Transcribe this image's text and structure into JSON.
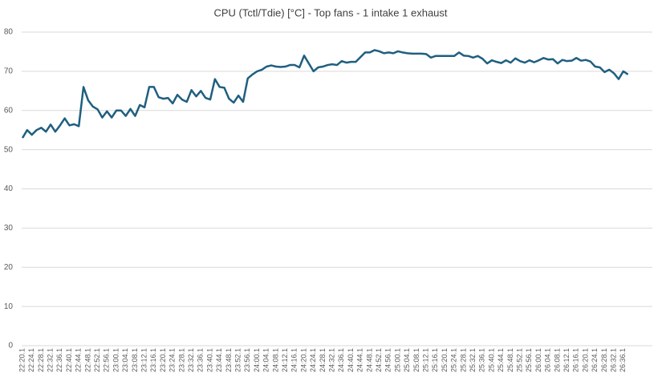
{
  "chart_data": {
    "type": "line",
    "title": "CPU (Tctl/Tdie) [°C] - Top fans - 1 intake 1 exhaust",
    "categories": [
      "22:20.1",
      null,
      "22:24.1",
      null,
      "22:28.1",
      null,
      "22:32.1",
      null,
      "22:36.1",
      null,
      "22:40.1",
      null,
      "22:44.1",
      null,
      "22:48.1",
      null,
      "22:52.1",
      null,
      "22:56.1",
      null,
      "23:00.1",
      null,
      "23:04.1",
      null,
      "23:08.1",
      null,
      "23:12.1",
      null,
      "23:16.1",
      null,
      "23:20.1",
      null,
      "23:24.1",
      null,
      "23:28.1",
      null,
      "23:32.1",
      null,
      "23:36.1",
      null,
      "23:40.1",
      null,
      "23:44.1",
      null,
      "23:48.1",
      null,
      "23:52.1",
      null,
      "23:56.1",
      null,
      "24:00.1",
      null,
      "24:04.1",
      null,
      "24:08.1",
      null,
      "24:12.1",
      null,
      "24:16.1",
      null,
      "24:20.1",
      null,
      "24:24.1",
      null,
      "24:28.1",
      null,
      "24:32.1",
      null,
      "24:36.1",
      null,
      "24:40.1",
      null,
      "24:44.1",
      null,
      "24:48.1",
      null,
      "24:52.1",
      null,
      "24:56.1",
      null,
      "25:00.1",
      null,
      "25:04.1",
      null,
      "25:08.1",
      null,
      "25:12.1",
      null,
      "25:16.1",
      null,
      "25:20.1",
      null,
      "25:24.1",
      null,
      "25:28.1",
      null,
      "25:32.1",
      null,
      "25:36.1",
      null,
      "25:40.1",
      null,
      "25:44.1",
      null,
      "25:48.1",
      null,
      "25:52.1",
      null,
      "25:56.1",
      null,
      "26:00.1",
      null,
      "26:04.1",
      null,
      "26:08.1",
      null,
      "26:12.1",
      null,
      "26:16.1",
      null,
      "26:20.1",
      null,
      "26:24.1",
      null,
      "26:28.1",
      null,
      "26:32.1",
      null,
      "26:36.1",
      null
    ],
    "series": [
      {
        "name": "CPU (Tctl/Tdie) [°C]",
        "color": "#1f5f80",
        "values": [
          53,
          55,
          53.8,
          55,
          55.6,
          54.6,
          56.4,
          54.6,
          56.2,
          58,
          56.2,
          56.5,
          56,
          66,
          62.6,
          61,
          60.3,
          58.2,
          59.8,
          58.2,
          60,
          60,
          58.6,
          60.4,
          58.6,
          61.4,
          60.8,
          66,
          66,
          63.4,
          63,
          63.2,
          61.8,
          64,
          62.8,
          62.2,
          65.2,
          63.6,
          65,
          63.2,
          62.8,
          68,
          66,
          65.8,
          63,
          62,
          63.8,
          62.2,
          68.2,
          69.2,
          70,
          70.4,
          71.2,
          71.5,
          71.2,
          71.1,
          71.2,
          71.6,
          71.6,
          71,
          74,
          72,
          70,
          71,
          71.2,
          71.6,
          71.8,
          71.6,
          72.6,
          72.2,
          72.4,
          72.4,
          73.6,
          74.8,
          74.8,
          75.4,
          75.1,
          74.6,
          74.8,
          74.6,
          75.1,
          74.8,
          74.6,
          74.5,
          74.5,
          74.5,
          74.4,
          73.5,
          73.9,
          73.9,
          73.9,
          73.9,
          73.9,
          74.8,
          74,
          73.9,
          73.5,
          73.9,
          73.2,
          72,
          72.8,
          72.4,
          72.1,
          72.8,
          72.2,
          73.3,
          72.6,
          72.2,
          72.8,
          72.3,
          72.8,
          73.4,
          73,
          73.1,
          72,
          72.9,
          72.6,
          72.7,
          73.4,
          72.7,
          72.9,
          72.5,
          71.2,
          71,
          69.8,
          70.4,
          69.5,
          68,
          70,
          69.2
        ]
      }
    ],
    "ylim": [
      0,
      80
    ],
    "yticks": [
      0,
      10,
      20,
      30,
      40,
      50,
      60,
      70,
      80
    ],
    "grid": true
  }
}
